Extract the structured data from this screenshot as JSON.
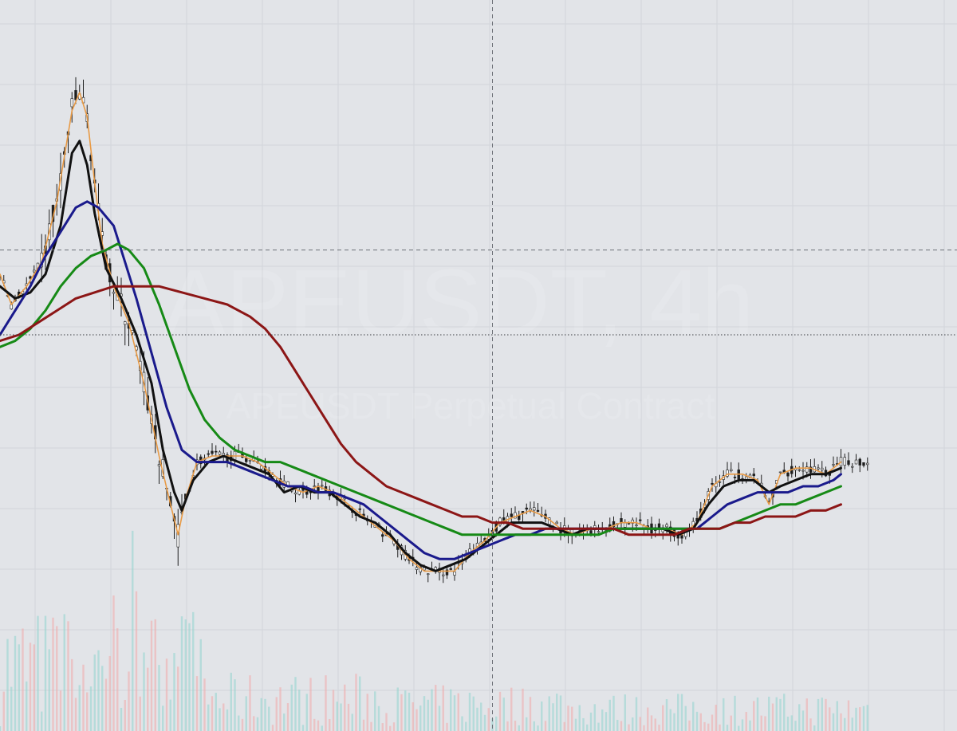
{
  "watermark": {
    "symbol_line": "APEUSDT, 4h",
    "description_line": "APEUSDT Perpetual Contract"
  },
  "colors": {
    "background": "#e2e4e8",
    "grid": "#d2d5da",
    "candle": "#1f1f1f",
    "price_line": "#e89a45",
    "volume_up": "#8fd3cd",
    "volume_down": "#f0a7a7"
  },
  "chart_data": {
    "type": "line",
    "symbol": "APEUSDT",
    "timeframe": "4h",
    "bars": 230,
    "axes_visible": false,
    "grid": true,
    "crosshair": {
      "bar": 130,
      "price": 64
    },
    "last_price_line": 50,
    "ylim": [
      0,
      100
    ],
    "series": [
      {
        "color": "#e89a45",
        "points": [
          [
            0,
            60
          ],
          [
            3,
            55
          ],
          [
            7,
            58
          ],
          [
            11,
            62
          ],
          [
            15,
            72
          ],
          [
            19,
            87
          ],
          [
            21,
            90
          ],
          [
            23,
            86
          ],
          [
            25,
            75
          ],
          [
            27,
            65
          ],
          [
            30,
            58
          ],
          [
            34,
            52
          ],
          [
            38,
            42
          ],
          [
            42,
            30
          ],
          [
            45,
            22
          ],
          [
            47,
            17
          ],
          [
            49,
            23
          ],
          [
            52,
            29
          ],
          [
            56,
            30
          ],
          [
            60,
            30
          ],
          [
            64,
            30
          ],
          [
            68,
            29
          ],
          [
            72,
            27
          ],
          [
            76,
            25
          ],
          [
            80,
            24
          ],
          [
            84,
            25
          ],
          [
            88,
            24
          ],
          [
            92,
            22
          ],
          [
            96,
            20
          ],
          [
            100,
            18
          ],
          [
            104,
            16
          ],
          [
            108,
            13
          ],
          [
            112,
            11
          ],
          [
            116,
            11
          ],
          [
            120,
            11
          ],
          [
            124,
            14
          ],
          [
            128,
            16
          ],
          [
            132,
            19
          ],
          [
            136,
            20
          ],
          [
            140,
            21
          ],
          [
            144,
            20
          ],
          [
            148,
            18
          ],
          [
            152,
            17
          ],
          [
            156,
            18
          ],
          [
            160,
            18
          ],
          [
            164,
            19
          ],
          [
            168,
            19
          ],
          [
            172,
            18
          ],
          [
            176,
            18
          ],
          [
            180,
            17
          ],
          [
            184,
            19
          ],
          [
            188,
            25
          ],
          [
            192,
            27
          ],
          [
            196,
            27
          ],
          [
            200,
            26
          ],
          [
            203,
            22
          ],
          [
            206,
            27
          ],
          [
            210,
            28
          ],
          [
            214,
            28
          ],
          [
            218,
            27
          ],
          [
            222,
            29
          ]
        ]
      },
      {
        "color": "#111111",
        "points": [
          [
            0,
            58
          ],
          [
            4,
            56
          ],
          [
            8,
            57
          ],
          [
            12,
            60
          ],
          [
            16,
            68
          ],
          [
            19,
            80
          ],
          [
            21,
            82
          ],
          [
            23,
            78
          ],
          [
            25,
            70
          ],
          [
            28,
            61
          ],
          [
            32,
            56
          ],
          [
            36,
            50
          ],
          [
            40,
            42
          ],
          [
            43,
            31
          ],
          [
            46,
            24
          ],
          [
            48,
            21
          ],
          [
            51,
            26
          ],
          [
            55,
            29
          ],
          [
            59,
            30
          ],
          [
            63,
            29
          ],
          [
            67,
            28
          ],
          [
            71,
            27
          ],
          [
            75,
            24
          ],
          [
            79,
            25
          ],
          [
            83,
            24
          ],
          [
            87,
            24
          ],
          [
            91,
            22
          ],
          [
            95,
            20
          ],
          [
            99,
            19
          ],
          [
            103,
            17
          ],
          [
            107,
            14
          ],
          [
            111,
            12
          ],
          [
            115,
            11
          ],
          [
            119,
            12
          ],
          [
            123,
            13
          ],
          [
            127,
            15
          ],
          [
            131,
            17
          ],
          [
            135,
            19
          ],
          [
            139,
            19
          ],
          [
            143,
            19
          ],
          [
            147,
            18
          ],
          [
            151,
            17
          ],
          [
            155,
            18
          ],
          [
            159,
            18
          ],
          [
            163,
            18
          ],
          [
            167,
            18
          ],
          [
            171,
            18
          ],
          [
            175,
            18
          ],
          [
            179,
            17
          ],
          [
            183,
            18
          ],
          [
            187,
            22
          ],
          [
            191,
            25
          ],
          [
            195,
            26
          ],
          [
            199,
            26
          ],
          [
            203,
            24
          ],
          [
            206,
            25
          ],
          [
            210,
            26
          ],
          [
            214,
            27
          ],
          [
            218,
            27
          ],
          [
            222,
            28
          ]
        ]
      },
      {
        "color": "#1a1a8c",
        "points": [
          [
            0,
            50
          ],
          [
            4,
            54
          ],
          [
            8,
            58
          ],
          [
            12,
            63
          ],
          [
            16,
            67
          ],
          [
            20,
            71
          ],
          [
            23,
            72
          ],
          [
            26,
            71
          ],
          [
            30,
            68
          ],
          [
            33,
            62
          ],
          [
            36,
            56
          ],
          [
            40,
            47
          ],
          [
            44,
            38
          ],
          [
            48,
            31
          ],
          [
            52,
            29
          ],
          [
            56,
            29
          ],
          [
            60,
            29
          ],
          [
            64,
            28
          ],
          [
            68,
            27
          ],
          [
            72,
            26
          ],
          [
            76,
            25
          ],
          [
            80,
            25
          ],
          [
            84,
            24
          ],
          [
            88,
            24
          ],
          [
            92,
            23
          ],
          [
            96,
            22
          ],
          [
            100,
            20
          ],
          [
            104,
            18
          ],
          [
            108,
            16
          ],
          [
            112,
            14
          ],
          [
            116,
            13
          ],
          [
            120,
            13
          ],
          [
            124,
            14
          ],
          [
            128,
            15
          ],
          [
            132,
            16
          ],
          [
            136,
            17
          ],
          [
            140,
            17
          ],
          [
            144,
            18
          ],
          [
            148,
            18
          ],
          [
            152,
            18
          ],
          [
            156,
            18
          ],
          [
            160,
            18
          ],
          [
            164,
            18
          ],
          [
            168,
            18
          ],
          [
            172,
            18
          ],
          [
            176,
            18
          ],
          [
            180,
            18
          ],
          [
            184,
            18
          ],
          [
            188,
            20
          ],
          [
            192,
            22
          ],
          [
            196,
            23
          ],
          [
            200,
            24
          ],
          [
            204,
            24
          ],
          [
            208,
            24
          ],
          [
            212,
            25
          ],
          [
            216,
            25
          ],
          [
            220,
            26
          ],
          [
            222,
            27
          ]
        ]
      },
      {
        "color": "#168a16",
        "points": [
          [
            0,
            48
          ],
          [
            4,
            49
          ],
          [
            8,
            51
          ],
          [
            12,
            54
          ],
          [
            16,
            58
          ],
          [
            20,
            61
          ],
          [
            24,
            63
          ],
          [
            28,
            64
          ],
          [
            31,
            65
          ],
          [
            34,
            64
          ],
          [
            38,
            61
          ],
          [
            42,
            55
          ],
          [
            46,
            48
          ],
          [
            50,
            41
          ],
          [
            54,
            36
          ],
          [
            58,
            33
          ],
          [
            62,
            31
          ],
          [
            66,
            30
          ],
          [
            70,
            29
          ],
          [
            74,
            29
          ],
          [
            78,
            28
          ],
          [
            82,
            27
          ],
          [
            86,
            26
          ],
          [
            90,
            25
          ],
          [
            94,
            24
          ],
          [
            98,
            23
          ],
          [
            102,
            22
          ],
          [
            106,
            21
          ],
          [
            110,
            20
          ],
          [
            114,
            19
          ],
          [
            118,
            18
          ],
          [
            122,
            17
          ],
          [
            126,
            17
          ],
          [
            130,
            17
          ],
          [
            134,
            17
          ],
          [
            138,
            17
          ],
          [
            142,
            17
          ],
          [
            146,
            17
          ],
          [
            150,
            17
          ],
          [
            154,
            17
          ],
          [
            158,
            17
          ],
          [
            162,
            18
          ],
          [
            166,
            18
          ],
          [
            170,
            18
          ],
          [
            174,
            18
          ],
          [
            178,
            18
          ],
          [
            182,
            18
          ],
          [
            186,
            18
          ],
          [
            190,
            18
          ],
          [
            194,
            19
          ],
          [
            198,
            20
          ],
          [
            202,
            21
          ],
          [
            206,
            22
          ],
          [
            210,
            22
          ],
          [
            214,
            23
          ],
          [
            218,
            24
          ],
          [
            222,
            25
          ]
        ]
      },
      {
        "color": "#8c1616",
        "points": [
          [
            0,
            49
          ],
          [
            5,
            50
          ],
          [
            10,
            52
          ],
          [
            15,
            54
          ],
          [
            20,
            56
          ],
          [
            25,
            57
          ],
          [
            30,
            58
          ],
          [
            36,
            58
          ],
          [
            42,
            58
          ],
          [
            48,
            57
          ],
          [
            54,
            56
          ],
          [
            60,
            55
          ],
          [
            66,
            53
          ],
          [
            70,
            51
          ],
          [
            74,
            48
          ],
          [
            78,
            44
          ],
          [
            82,
            40
          ],
          [
            86,
            36
          ],
          [
            90,
            32
          ],
          [
            94,
            29
          ],
          [
            98,
            27
          ],
          [
            102,
            25
          ],
          [
            106,
            24
          ],
          [
            110,
            23
          ],
          [
            114,
            22
          ],
          [
            118,
            21
          ],
          [
            122,
            20
          ],
          [
            126,
            20
          ],
          [
            130,
            19
          ],
          [
            134,
            19
          ],
          [
            138,
            18
          ],
          [
            142,
            18
          ],
          [
            146,
            18
          ],
          [
            150,
            18
          ],
          [
            154,
            18
          ],
          [
            158,
            18
          ],
          [
            162,
            18
          ],
          [
            166,
            17
          ],
          [
            170,
            17
          ],
          [
            174,
            17
          ],
          [
            178,
            17
          ],
          [
            182,
            18
          ],
          [
            186,
            18
          ],
          [
            190,
            18
          ],
          [
            194,
            19
          ],
          [
            198,
            19
          ],
          [
            202,
            20
          ],
          [
            206,
            20
          ],
          [
            210,
            20
          ],
          [
            214,
            21
          ],
          [
            218,
            21
          ],
          [
            222,
            22
          ]
        ]
      }
    ]
  }
}
